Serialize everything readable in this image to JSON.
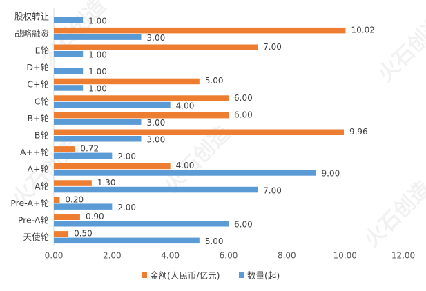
{
  "chart_data": {
    "type": "bar",
    "orientation": "horizontal",
    "categories": [
      "股权转让",
      "战略融资",
      "E轮",
      "D+轮",
      "C+轮",
      "C轮",
      "B+轮",
      "B轮",
      "A++轮",
      "A+轮",
      "A轮",
      "Pre-A+轮",
      "Pre-A轮",
      "天使轮"
    ],
    "series": [
      {
        "name": "金额(人民币/亿元)",
        "color": "#ED7D31",
        "values": [
          null,
          10.02,
          7.0,
          null,
          5.0,
          6.0,
          6.0,
          9.96,
          0.72,
          4.0,
          1.3,
          0.2,
          0.9,
          0.5
        ]
      },
      {
        "name": "数量(起)",
        "color": "#5B9BD5",
        "values": [
          1.0,
          3.0,
          1.0,
          1.0,
          1.0,
          4.0,
          3.0,
          3.0,
          2.0,
          9.0,
          7.0,
          2.0,
          6.0,
          5.0
        ]
      }
    ],
    "x_ticks": [
      "0.00",
      "2.00",
      "4.00",
      "6.00",
      "8.00",
      "10.00",
      "12.00"
    ],
    "xlim": [
      0,
      12
    ],
    "grid": false,
    "legend_position": "bottom"
  },
  "watermark": "火石创造"
}
